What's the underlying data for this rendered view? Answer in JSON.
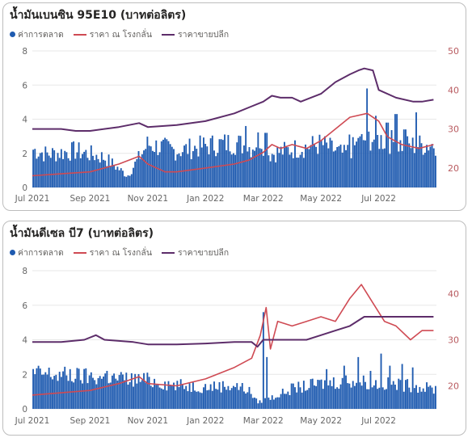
{
  "colors": {
    "bar": "#1f5bb0",
    "farm": "#cf4a53",
    "retail": "#5d2d6a",
    "grid": "#e7e7e7",
    "axis_left": "#666666",
    "axis_right": "#b85a5f"
  },
  "legend_labels": {
    "bar": "ค่าการตลาด",
    "farm": "ราคา ณ โรงกลั่น",
    "retail": "ราคาขายปลีก"
  },
  "chart_data": [
    {
      "type": "bar+line",
      "title": "น้ำมันเบนซิน 95E10 (บาทต่อลิตร)",
      "x_ticks": [
        "Jul 2021",
        "Sep 2021",
        "Nov 2021",
        "Jan 2022",
        "Mar 2022",
        "May 2022",
        "Jul 2022"
      ],
      "y_left": {
        "range": [
          0,
          8
        ],
        "ticks": [
          "0",
          "2",
          "4",
          "6",
          "8"
        ]
      },
      "y_right": {
        "range": [
          15,
          50
        ],
        "ticks": [
          "20",
          "30",
          "40",
          "50"
        ]
      },
      "legend_position": "top-left",
      "series": [
        {
          "name": "ค่าการตลาด",
          "kind": "bar",
          "axis": "left",
          "profile": [
            [
              0,
              2.3
            ],
            [
              0.5,
              2.0
            ],
            [
              1.5,
              2.2
            ],
            [
              2.5,
              1.8
            ],
            [
              3.3,
              0.7
            ],
            [
              4.0,
              2.6
            ],
            [
              5.0,
              2.2
            ],
            [
              6.0,
              2.5
            ],
            [
              7.0,
              2.7
            ],
            [
              7.6,
              2.4
            ],
            [
              7.9,
              3.0
            ],
            [
              8.2,
              2.0
            ],
            [
              9.0,
              2.3
            ],
            [
              10.0,
              2.6
            ],
            [
              10.8,
              2.0
            ],
            [
              11.6,
              3.0
            ],
            [
              12.3,
              2.8
            ],
            [
              13.0,
              2.5
            ],
            [
              13.8,
              2.6
            ]
          ],
          "spikes": [
            [
              7.4,
              3.6
            ],
            [
              8.1,
              3.2
            ],
            [
              11.0,
              3.1
            ],
            [
              11.3,
              2.9
            ],
            [
              11.6,
              5.8
            ],
            [
              11.9,
              4.2
            ],
            [
              12.3,
              3.8
            ],
            [
              12.6,
              4.3
            ],
            [
              12.9,
              3.4
            ],
            [
              13.3,
              4.4
            ]
          ]
        },
        {
          "name": "ราคา ณ โรงกลั่น",
          "kind": "line",
          "axis": "right",
          "points": [
            [
              0,
              18
            ],
            [
              1,
              18.5
            ],
            [
              2,
              19
            ],
            [
              3,
              21
            ],
            [
              3.7,
              23
            ],
            [
              4,
              21
            ],
            [
              4.6,
              19
            ],
            [
              5,
              19
            ],
            [
              6,
              20
            ],
            [
              7,
              21
            ],
            [
              7.5,
              22
            ],
            [
              8,
              24
            ],
            [
              8.3,
              26
            ],
            [
              8.6,
              25
            ],
            [
              9,
              26
            ],
            [
              9.5,
              25
            ],
            [
              10,
              27
            ],
            [
              11,
              33
            ],
            [
              11.6,
              34
            ],
            [
              12.0,
              32
            ],
            [
              12.3,
              28
            ],
            [
              12.8,
              26
            ],
            [
              13.4,
              25
            ],
            [
              13.9,
              26
            ]
          ]
        },
        {
          "name": "ราคาขายปลีก",
          "kind": "line",
          "axis": "right",
          "points": [
            [
              0,
              30
            ],
            [
              1,
              30
            ],
            [
              1.5,
              29.5
            ],
            [
              2,
              29.5
            ],
            [
              3,
              30.5
            ],
            [
              3.7,
              31.5
            ],
            [
              4,
              30.5
            ],
            [
              5,
              31
            ],
            [
              6,
              32
            ],
            [
              7,
              34
            ],
            [
              7.5,
              35.5
            ],
            [
              8,
              37
            ],
            [
              8.3,
              38.5
            ],
            [
              8.6,
              38
            ],
            [
              9,
              38
            ],
            [
              9.3,
              37
            ],
            [
              10,
              39
            ],
            [
              10.5,
              42
            ],
            [
              11,
              44
            ],
            [
              11.3,
              45
            ],
            [
              11.5,
              45.5
            ],
            [
              11.8,
              45
            ],
            [
              12.0,
              40
            ],
            [
              12.6,
              38
            ],
            [
              13.2,
              37
            ],
            [
              13.5,
              37
            ],
            [
              13.9,
              37.5
            ]
          ]
        }
      ]
    },
    {
      "type": "bar+line",
      "title": "น้ำมันดีเซล บี7 (บาทต่อลิตร)",
      "x_ticks": [
        "Jul 2021",
        "Sep 2021",
        "Nov 2021",
        "Jan 2022",
        "Mar 2022",
        "May 2022",
        "Jul 2022"
      ],
      "y_left": {
        "range": [
          0,
          8
        ],
        "ticks": [
          "0",
          "2",
          "4",
          "6",
          "8"
        ]
      },
      "y_right": {
        "range": [
          15,
          45
        ],
        "ticks": [
          "20",
          "30",
          "40"
        ]
      },
      "legend_position": "top-left",
      "series": [
        {
          "name": "ค่าการตลาด",
          "kind": "bar",
          "axis": "left",
          "profile": [
            [
              0,
              2.1
            ],
            [
              1,
              2.0
            ],
            [
              2,
              1.9
            ],
            [
              3,
              1.8
            ],
            [
              4,
              1.7
            ],
            [
              5,
              1.4
            ],
            [
              6,
              1.3
            ],
            [
              7,
              1.4
            ],
            [
              7.5,
              1.1
            ],
            [
              7.8,
              0.4
            ],
            [
              8.0,
              0.5
            ],
            [
              8.5,
              0.8
            ],
            [
              9,
              1.2
            ],
            [
              10,
              1.5
            ],
            [
              11,
              1.7
            ],
            [
              12,
              1.5
            ],
            [
              13,
              1.4
            ],
            [
              13.8,
              1.2
            ]
          ],
          "spikes": [
            [
              8.0,
              5.6
            ],
            [
              8.15,
              3.0
            ],
            [
              1.3,
              2.3
            ],
            [
              2.6,
              2.2
            ],
            [
              10.2,
              2.3
            ],
            [
              10.8,
              2.5
            ],
            [
              11.3,
              3.0
            ],
            [
              11.7,
              2.2
            ],
            [
              12.1,
              3.2
            ],
            [
              12.4,
              2.5
            ],
            [
              12.8,
              2.6
            ],
            [
              13.2,
              2.4
            ]
          ]
        },
        {
          "name": "ราคา ณ โรงกลั่น",
          "kind": "line",
          "axis": "right",
          "points": [
            [
              0,
              18
            ],
            [
              1,
              18.5
            ],
            [
              2,
              19
            ],
            [
              3,
              20.5
            ],
            [
              3.7,
              22
            ],
            [
              4,
              20.5
            ],
            [
              5,
              20
            ],
            [
              6,
              21.5
            ],
            [
              7,
              24
            ],
            [
              7.6,
              26
            ],
            [
              7.9,
              31
            ],
            [
              8.1,
              37
            ],
            [
              8.25,
              28
            ],
            [
              8.5,
              34
            ],
            [
              9,
              33
            ],
            [
              9.5,
              34
            ],
            [
              10,
              35
            ],
            [
              10.5,
              34
            ],
            [
              11,
              39
            ],
            [
              11.4,
              42
            ],
            [
              11.8,
              38
            ],
            [
              12.2,
              34
            ],
            [
              12.6,
              33
            ],
            [
              13.1,
              30
            ],
            [
              13.5,
              32
            ],
            [
              13.9,
              32
            ]
          ]
        },
        {
          "name": "ราคาขายปลีก",
          "kind": "line",
          "axis": "right",
          "points": [
            [
              0,
              29.5
            ],
            [
              1,
              29.5
            ],
            [
              1.8,
              30
            ],
            [
              2.2,
              31
            ],
            [
              2.5,
              30
            ],
            [
              3.5,
              29.5
            ],
            [
              4,
              29
            ],
            [
              5,
              29
            ],
            [
              6,
              29.2
            ],
            [
              7,
              29.5
            ],
            [
              7.6,
              29.5
            ],
            [
              7.8,
              28.5
            ],
            [
              8,
              30
            ],
            [
              8.5,
              30
            ],
            [
              9.5,
              30
            ],
            [
              10,
              31
            ],
            [
              10.5,
              32
            ],
            [
              11,
              33
            ],
            [
              11.5,
              35
            ],
            [
              12,
              35
            ],
            [
              13,
              35
            ],
            [
              13.9,
              35
            ]
          ]
        }
      ]
    }
  ]
}
